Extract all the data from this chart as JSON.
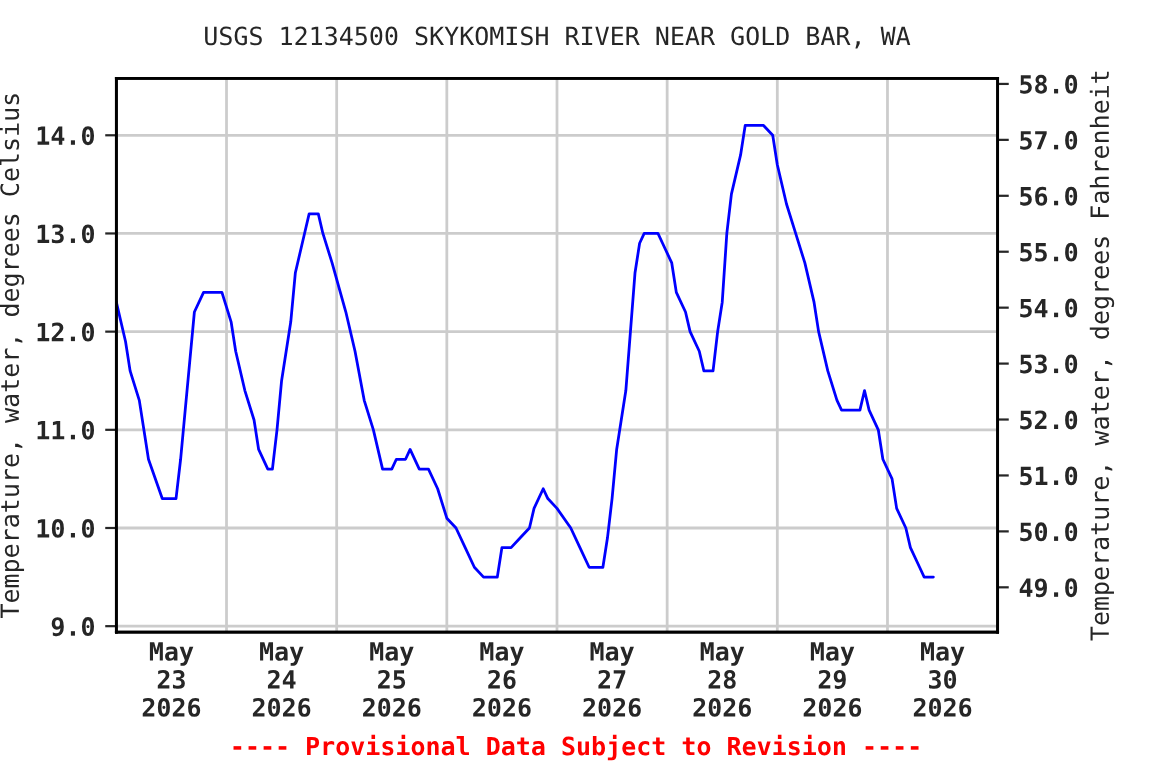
{
  "chart_data": {
    "type": "line",
    "title": "USGS 12134500 SKYKOMISH RIVER NEAR GOLD BAR, WA",
    "ylabel": "Temperature, water, degrees Celsius",
    "y2label": "Temperature, water, degrees Fahrenheit",
    "annotations": [
      "---- Provisional Data Subject to Revision ----"
    ],
    "x": [
      "2026-05-23T00:00",
      "2026-05-23T02:00",
      "2026-05-23T03:00",
      "2026-05-23T05:00",
      "2026-05-23T06:00",
      "2026-05-23T07:00",
      "2026-05-23T10:00",
      "2026-05-23T13:00",
      "2026-05-23T14:00",
      "2026-05-23T15:00",
      "2026-05-23T16:00",
      "2026-05-23T17:00",
      "2026-05-23T19:00",
      "2026-05-23T23:00",
      "2026-05-24T01:00",
      "2026-05-24T02:00",
      "2026-05-24T04:00",
      "2026-05-24T06:00",
      "2026-05-24T07:00",
      "2026-05-24T09:00",
      "2026-05-24T10:00",
      "2026-05-24T11:00",
      "2026-05-24T12:00",
      "2026-05-24T14:00",
      "2026-05-24T15:00",
      "2026-05-24T17:00",
      "2026-05-24T18:00",
      "2026-05-24T20:00",
      "2026-05-24T21:00",
      "2026-05-24T23:00",
      "2026-05-25T02:00",
      "2026-05-25T04:00",
      "2026-05-25T06:00",
      "2026-05-25T08:00",
      "2026-05-25T10:00",
      "2026-05-25T12:00",
      "2026-05-25T13:00",
      "2026-05-25T15:00",
      "2026-05-25T16:00",
      "2026-05-25T18:00",
      "2026-05-25T20:00",
      "2026-05-25T22:00",
      "2026-05-26T00:00",
      "2026-05-26T02:00",
      "2026-05-26T04:00",
      "2026-05-26T06:00",
      "2026-05-26T08:00",
      "2026-05-26T11:00",
      "2026-05-26T12:00",
      "2026-05-26T14:00",
      "2026-05-26T16:00",
      "2026-05-26T18:00",
      "2026-05-26T19:00",
      "2026-05-26T21:00",
      "2026-05-26T22:00",
      "2026-05-27T00:00",
      "2026-05-27T03:00",
      "2026-05-27T05:00",
      "2026-05-27T07:00",
      "2026-05-27T10:00",
      "2026-05-27T11:00",
      "2026-05-27T12:00",
      "2026-05-27T13:00",
      "2026-05-27T15:00",
      "2026-05-27T16:00",
      "2026-05-27T17:00",
      "2026-05-27T18:00",
      "2026-05-27T19:00",
      "2026-05-27T22:00",
      "2026-05-27T23:00",
      "2026-05-28T01:00",
      "2026-05-28T02:00",
      "2026-05-28T04:00",
      "2026-05-28T05:00",
      "2026-05-28T07:00",
      "2026-05-28T08:00",
      "2026-05-28T10:00",
      "2026-05-28T11:00",
      "2026-05-28T12:00",
      "2026-05-28T13:00",
      "2026-05-28T14:00",
      "2026-05-28T16:00",
      "2026-05-28T17:00",
      "2026-05-28T21:00",
      "2026-05-28T23:00",
      "2026-05-29T00:00",
      "2026-05-29T02:00",
      "2026-05-29T04:00",
      "2026-05-29T06:00",
      "2026-05-29T08:00",
      "2026-05-29T09:00",
      "2026-05-29T11:00",
      "2026-05-29T13:00",
      "2026-05-29T14:00",
      "2026-05-29T18:00",
      "2026-05-29T19:00",
      "2026-05-29T20:00",
      "2026-05-29T22:00",
      "2026-05-29T23:00",
      "2026-05-30T01:00",
      "2026-05-30T02:00",
      "2026-05-30T04:00",
      "2026-05-30T05:00",
      "2026-05-30T07:00",
      "2026-05-30T08:00",
      "2026-05-30T10:00"
    ],
    "series": [
      {
        "color": "#0000ff",
        "values": [
          12.3,
          11.9,
          11.6,
          11.3,
          11.0,
          10.7,
          10.3,
          10.3,
          10.7,
          11.2,
          11.7,
          12.2,
          12.4,
          12.4,
          12.1,
          11.8,
          11.4,
          11.1,
          10.8,
          10.6,
          10.6,
          11.0,
          11.5,
          12.1,
          12.6,
          13.0,
          13.2,
          13.2,
          13.0,
          12.7,
          12.2,
          11.8,
          11.3,
          11.0,
          10.6,
          10.6,
          10.7,
          10.7,
          10.8,
          10.6,
          10.6,
          10.4,
          10.1,
          10.0,
          9.8,
          9.6,
          9.5,
          9.5,
          9.8,
          9.8,
          9.9,
          10.0,
          10.2,
          10.4,
          10.3,
          10.2,
          10.0,
          9.8,
          9.6,
          9.6,
          9.9,
          10.3,
          10.8,
          11.4,
          12.0,
          12.6,
          12.9,
          13.0,
          13.0,
          12.9,
          12.7,
          12.4,
          12.2,
          12.0,
          11.8,
          11.6,
          11.6,
          12.0,
          12.3,
          13.0,
          13.4,
          13.8,
          14.1,
          14.1,
          14.0,
          13.7,
          13.3,
          13.0,
          12.7,
          12.3,
          12.0,
          11.6,
          11.3,
          11.2,
          11.2,
          11.4,
          11.2,
          11.0,
          10.7,
          10.5,
          10.2,
          10.0,
          9.8,
          9.6,
          9.5,
          9.5
        ]
      }
    ],
    "xlim": [
      "2026-05-23T00:00",
      "2026-05-31T00:00"
    ],
    "xticks": [
      {
        "value": "2026-05-23T00:00",
        "label": null
      },
      {
        "value": "2026-05-23T12:00",
        "label": "May\n23\n2026"
      },
      {
        "value": "2026-05-24T00:00",
        "label": null
      },
      {
        "value": "2026-05-24T12:00",
        "label": "May\n24\n2026"
      },
      {
        "value": "2026-05-25T00:00",
        "label": null
      },
      {
        "value": "2026-05-25T12:00",
        "label": "May\n25\n2026"
      },
      {
        "value": "2026-05-26T00:00",
        "label": null
      },
      {
        "value": "2026-05-26T12:00",
        "label": "May\n26\n2026"
      },
      {
        "value": "2026-05-27T00:00",
        "label": null
      },
      {
        "value": "2026-05-27T12:00",
        "label": "May\n27\n2026"
      },
      {
        "value": "2026-05-28T00:00",
        "label": null
      },
      {
        "value": "2026-05-28T12:00",
        "label": "May\n28\n2026"
      },
      {
        "value": "2026-05-29T00:00",
        "label": null
      },
      {
        "value": "2026-05-29T12:00",
        "label": "May\n29\n2026"
      },
      {
        "value": "2026-05-30T00:00",
        "label": null
      },
      {
        "value": "2026-05-30T12:00",
        "label": "May\n30\n2026"
      },
      {
        "value": "2026-05-31T00:00",
        "label": null
      }
    ],
    "ylim": [
      8.94,
      14.58
    ],
    "yticks": [
      {
        "value": 9,
        "label": "9.0"
      },
      {
        "value": 10,
        "label": "10.0"
      },
      {
        "value": 11,
        "label": "11.0"
      },
      {
        "value": 12,
        "label": "12.0"
      },
      {
        "value": 13,
        "label": "13.0"
      },
      {
        "value": 14,
        "label": "14.0"
      }
    ],
    "y2lim": [
      48.2,
      58.1
    ],
    "y2ticks": [
      {
        "value": 49,
        "label": "49.0"
      },
      {
        "value": 50,
        "label": "50.0"
      },
      {
        "value": 51,
        "label": "51.0"
      },
      {
        "value": 52,
        "label": "52.0"
      },
      {
        "value": 53,
        "label": "53.0"
      },
      {
        "value": 54,
        "label": "54.0"
      },
      {
        "value": 55,
        "label": "55.0"
      },
      {
        "value": 56,
        "label": "56.0"
      },
      {
        "value": 57,
        "label": "57.0"
      },
      {
        "value": 58,
        "label": "58.0"
      }
    ],
    "grid": true,
    "legend": false,
    "marker": "none",
    "line_style": "solid"
  }
}
